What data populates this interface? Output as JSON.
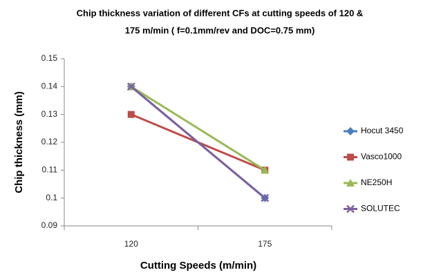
{
  "chart_data": {
    "type": "line",
    "title": [
      "Chip thickness variation of different CFs at cutting speeds of 120 &",
      "175 m/min  (  f=0.1mm/rev  and DOC=0.75 mm)"
    ],
    "x_label": "Cutting Speeds (m/min)",
    "y_label": "Chip thickness (mm)",
    "categories": [
      "120",
      "175"
    ],
    "series": [
      {
        "name": "Hocut 3450",
        "color": "#4a7ebb",
        "marker": "diamond",
        "values": [
          0.14,
          0.1
        ]
      },
      {
        "name": "Vasco1000",
        "color": "#be4b48",
        "marker": "square",
        "values": [
          0.13,
          0.11
        ]
      },
      {
        "name": "NE250H",
        "color": "#98b954",
        "marker": "triangle",
        "values": [
          0.14,
          0.11
        ]
      },
      {
        "name": "SOLUTEC",
        "color": "#7d60a0",
        "marker": "x",
        "values": [
          0.14,
          0.1
        ]
      }
    ],
    "ylim": [
      0.09,
      0.15
    ],
    "yticks": [
      0.09,
      0.1,
      0.11,
      0.12,
      0.13,
      0.14,
      0.15
    ],
    "grid": false,
    "legend": "right"
  }
}
